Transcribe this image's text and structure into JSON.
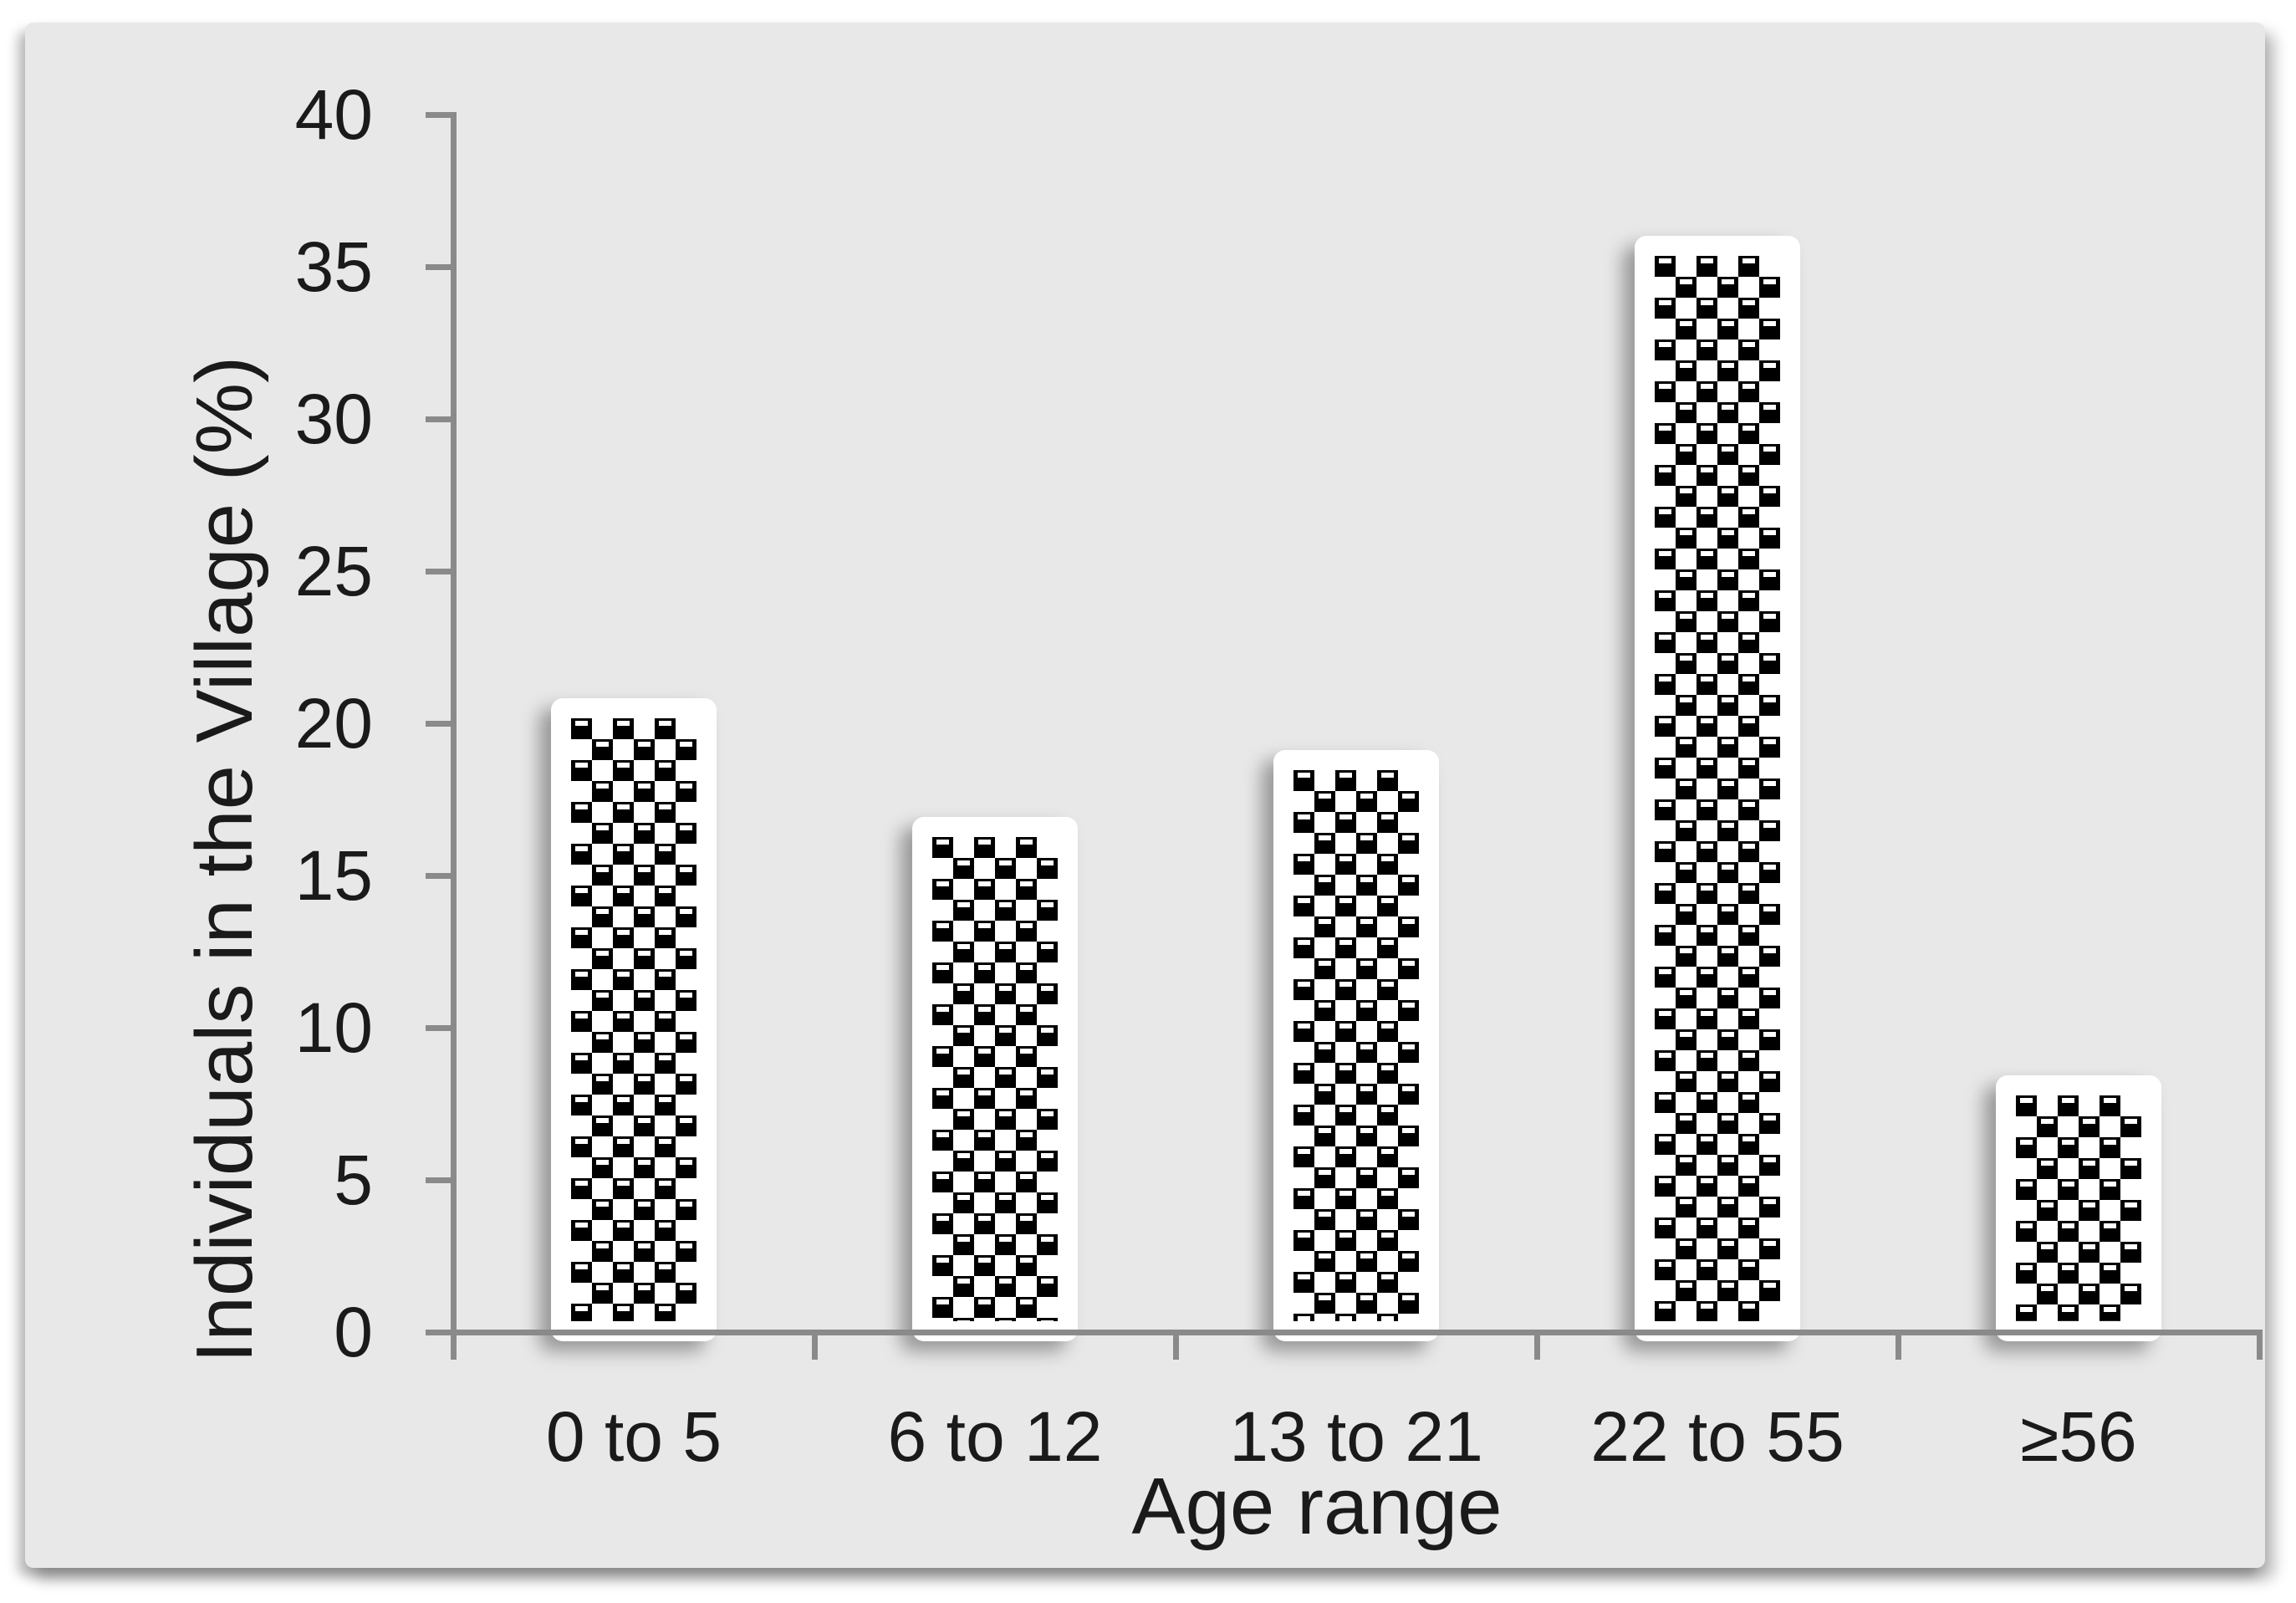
{
  "page": {
    "background": "#ffffff"
  },
  "chart_data": {
    "type": "bar",
    "title": "",
    "categories": [
      "0 to 5",
      "6 to 12",
      "13 to 21",
      "22 to 55",
      "≥56"
    ],
    "values": [
      20.5,
      16.6,
      18.8,
      35.7,
      8.1
    ],
    "xlabel": "Age range",
    "ylabel": "Individuals in the Village (%)",
    "ylim": [
      0,
      40
    ],
    "yticks": [
      0,
      5,
      10,
      15,
      20,
      25,
      30,
      35,
      40
    ],
    "grid": false,
    "legend": false,
    "bar_style": "black and white checkerboard ball pattern fill, thick white bar border, soft drop shadow",
    "colors": {
      "plot_background": "#e8e8e8",
      "page_background": "#ffffff",
      "axis_line": "#8a8a8a",
      "text": "#1a1a1a",
      "bar_pattern_foreground": "#000000",
      "bar_pattern_background": "#ffffff"
    }
  }
}
